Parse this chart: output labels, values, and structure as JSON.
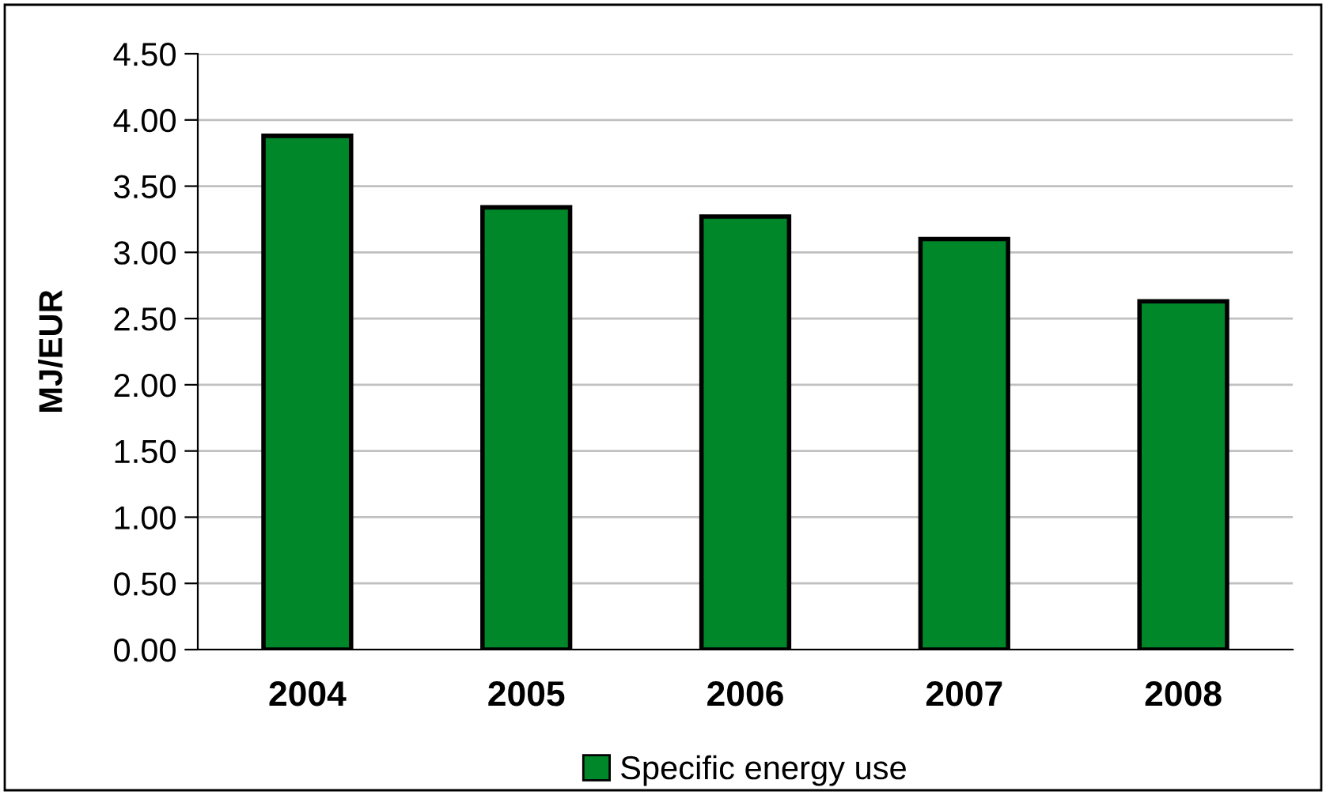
{
  "chart_data": {
    "type": "bar",
    "ylabel": "MJ/EUR",
    "categories": [
      "2004",
      "2005",
      "2006",
      "2007",
      "2008"
    ],
    "series": [
      {
        "name": "Specific energy use",
        "color": "#008729",
        "values": [
          3.88,
          3.34,
          3.27,
          3.1,
          2.63
        ]
      }
    ],
    "ylim": [
      0,
      4.5
    ],
    "yticks": [
      {
        "value": 0,
        "label": "0.00"
      },
      {
        "value": 0.5,
        "label": "0.50"
      },
      {
        "value": 1,
        "label": "1.00"
      },
      {
        "value": 1.5,
        "label": "1.50"
      },
      {
        "value": 2,
        "label": "2.00"
      },
      {
        "value": 2.5,
        "label": "2.50"
      },
      {
        "value": 3,
        "label": "3.00"
      },
      {
        "value": 3.5,
        "label": "3.50"
      },
      {
        "value": 4,
        "label": "4.00"
      },
      {
        "value": 4.5,
        "label": "4.50"
      }
    ],
    "grid": "y",
    "legend": "bottom"
  }
}
